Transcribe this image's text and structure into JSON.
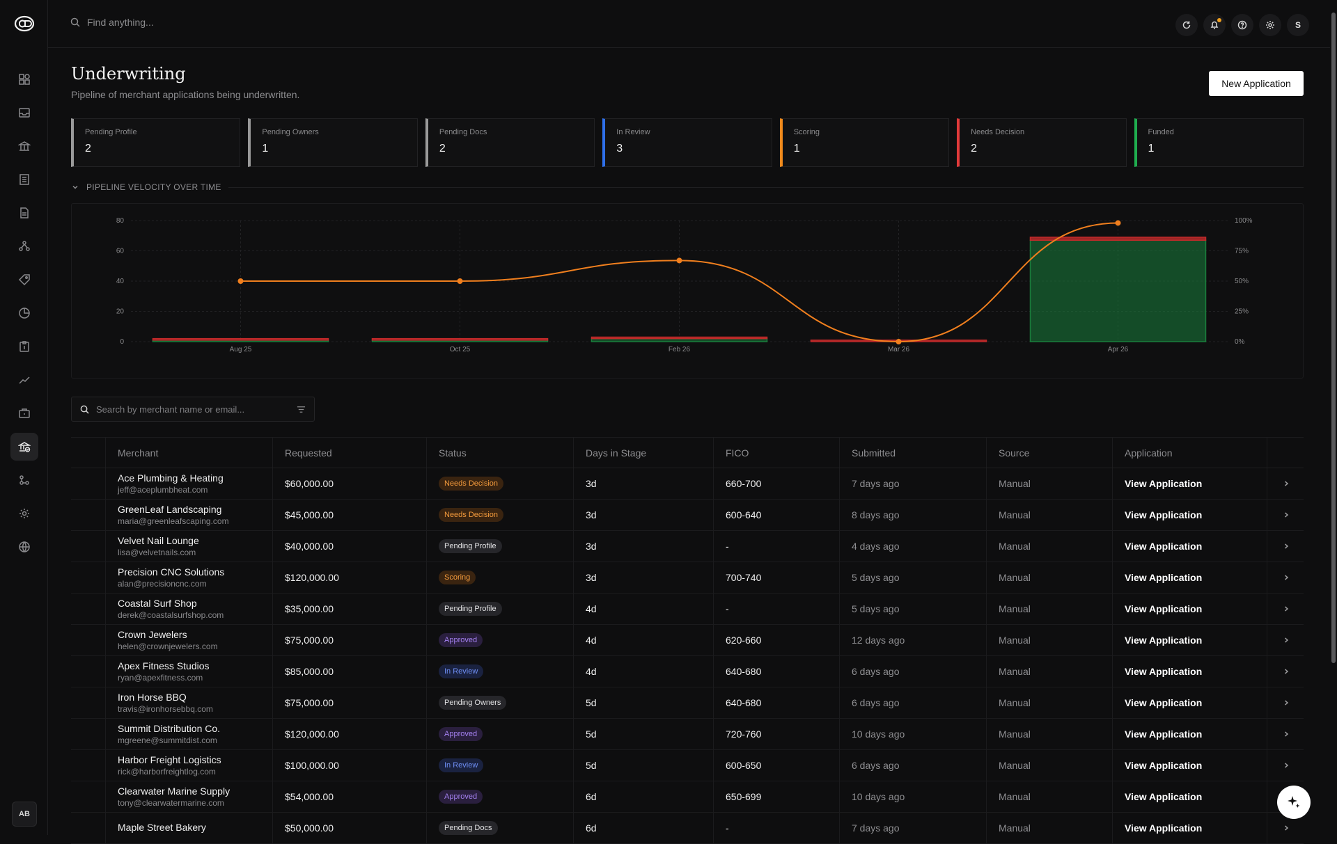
{
  "app": {
    "user_initial": "S",
    "rail_user": "AB"
  },
  "search": {
    "placeholder": "Find anything..."
  },
  "page": {
    "title": "Underwriting",
    "subtitle": "Pipeline of merchant applications being underwritten.",
    "new_button": "New Application"
  },
  "stages": [
    {
      "label": "Pending Profile",
      "value": "2",
      "color": "#9a9a9a"
    },
    {
      "label": "Pending Owners",
      "value": "1",
      "color": "#9a9a9a"
    },
    {
      "label": "Pending Docs",
      "value": "2",
      "color": "#9a9a9a"
    },
    {
      "label": "In Review",
      "value": "3",
      "color": "#2f6fe8"
    },
    {
      "label": "Scoring",
      "value": "1",
      "color": "#f08a1c"
    },
    {
      "label": "Needs Decision",
      "value": "2",
      "color": "#e23a3a"
    },
    {
      "label": "Funded",
      "value": "1",
      "color": "#1fad4f"
    }
  ],
  "velocity": {
    "section_title": "PIPELINE VELOCITY OVER TIME"
  },
  "chart_data": {
    "type": "bar",
    "categories": [
      "Aug 25",
      "Oct 25",
      "Feb 26",
      "Mar 26",
      "Apr 26"
    ],
    "series": [
      {
        "values": [
          1,
          1,
          2,
          0,
          67
        ],
        "color": "#1a7f3c"
      },
      {
        "values": [
          1,
          1,
          1,
          1,
          2
        ],
        "color": "#c22a2a"
      }
    ],
    "line": {
      "values": [
        50,
        50,
        67,
        0,
        98
      ],
      "color": "#f07f1e",
      "axis": "right"
    },
    "ylim": [
      0,
      80
    ],
    "y_ticks": [
      "0",
      "20",
      "40",
      "60",
      "80"
    ],
    "y2lim": [
      0,
      100
    ],
    "y2_ticks": [
      "0%",
      "25%",
      "50%",
      "75%",
      "100%"
    ],
    "grid": true
  },
  "table_search": {
    "placeholder": "Search by merchant name or email..."
  },
  "table": {
    "headers": [
      "Merchant",
      "Requested",
      "Status",
      "Days in Stage",
      "FICO",
      "Submitted",
      "Source",
      "Application"
    ],
    "rows": [
      {
        "name": "Ace Plumbing & Heating",
        "email": "jeff@aceplumbheat.com",
        "requested": "$60,000.00",
        "status": "Needs Decision",
        "status_kind": "needs",
        "days": "3d",
        "fico": "660-700",
        "submitted": "7 days ago",
        "source": "Manual",
        "app": "View Application"
      },
      {
        "name": "GreenLeaf Landscaping",
        "email": "maria@greenleafscaping.com",
        "requested": "$45,000.00",
        "status": "Needs Decision",
        "status_kind": "needs",
        "days": "3d",
        "fico": "600-640",
        "submitted": "8 days ago",
        "source": "Manual",
        "app": "View Application"
      },
      {
        "name": "Velvet Nail Lounge",
        "email": "lisa@velvetnails.com",
        "requested": "$40,000.00",
        "status": "Pending Profile",
        "status_kind": "pending",
        "days": "3d",
        "fico": "-",
        "submitted": "4 days ago",
        "source": "Manual",
        "app": "View Application"
      },
      {
        "name": "Precision CNC Solutions",
        "email": "alan@precisioncnc.com",
        "requested": "$120,000.00",
        "status": "Scoring",
        "status_kind": "scoring",
        "days": "3d",
        "fico": "700-740",
        "submitted": "5 days ago",
        "source": "Manual",
        "app": "View Application"
      },
      {
        "name": "Coastal Surf Shop",
        "email": "derek@coastalsurfshop.com",
        "requested": "$35,000.00",
        "status": "Pending Profile",
        "status_kind": "pending",
        "days": "4d",
        "fico": "-",
        "submitted": "5 days ago",
        "source": "Manual",
        "app": "View Application"
      },
      {
        "name": "Crown Jewelers",
        "email": "helen@crownjewelers.com",
        "requested": "$75,000.00",
        "status": "Approved",
        "status_kind": "approved",
        "days": "4d",
        "fico": "620-660",
        "submitted": "12 days ago",
        "source": "Manual",
        "app": "View Application"
      },
      {
        "name": "Apex Fitness Studios",
        "email": "ryan@apexfitness.com",
        "requested": "$85,000.00",
        "status": "In Review",
        "status_kind": "review",
        "days": "4d",
        "fico": "640-680",
        "submitted": "6 days ago",
        "source": "Manual",
        "app": "View Application"
      },
      {
        "name": "Iron Horse BBQ",
        "email": "travis@ironhorsebbq.com",
        "requested": "$75,000.00",
        "status": "Pending Owners",
        "status_kind": "pending",
        "days": "5d",
        "fico": "640-680",
        "submitted": "6 days ago",
        "source": "Manual",
        "app": "View Application"
      },
      {
        "name": "Summit Distribution Co.",
        "email": "mgreene@summitdist.com",
        "requested": "$120,000.00",
        "status": "Approved",
        "status_kind": "approved",
        "days": "5d",
        "fico": "720-760",
        "submitted": "10 days ago",
        "source": "Manual",
        "app": "View Application"
      },
      {
        "name": "Harbor Freight Logistics",
        "email": "rick@harborfreightlog.com",
        "requested": "$100,000.00",
        "status": "In Review",
        "status_kind": "review",
        "days": "5d",
        "fico": "600-650",
        "submitted": "6 days ago",
        "source": "Manual",
        "app": "View Application"
      },
      {
        "name": "Clearwater Marine Supply",
        "email": "tony@clearwatermarine.com",
        "requested": "$54,000.00",
        "status": "Approved",
        "status_kind": "approved",
        "days": "6d",
        "fico": "650-699",
        "submitted": "10 days ago",
        "source": "Manual",
        "app": "View Application"
      },
      {
        "name": "Maple Street Bakery",
        "email": "",
        "requested": "$50,000.00",
        "status": "Pending Docs",
        "status_kind": "pending",
        "days": "6d",
        "fico": "-",
        "submitted": "7 days ago",
        "source": "Manual",
        "app": "View Application"
      }
    ]
  }
}
